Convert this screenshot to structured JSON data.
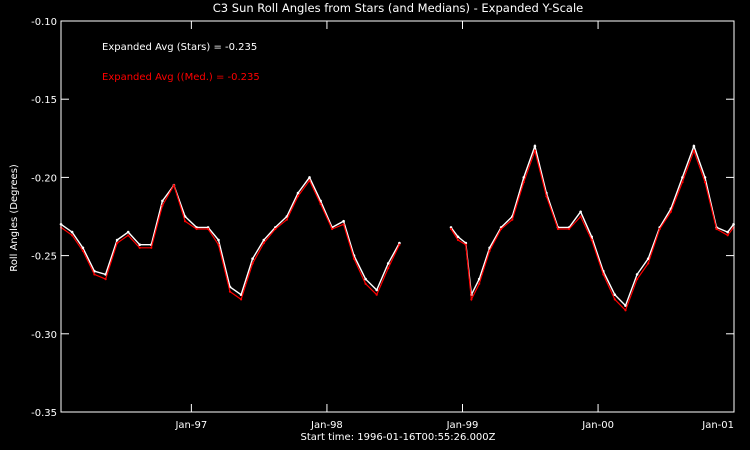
{
  "chart_data": {
    "type": "line",
    "title": "C3 Sun Roll Angles from Stars (and Medians) - Expanded Y-Scale",
    "xlabel": "Start time: 1996-01-16T00:55:26.000Z",
    "ylabel": "Roll Angles (Degrees)",
    "ylim": [
      -0.35,
      -0.1
    ],
    "xlim": [
      "1996-01-16",
      "2001-01-01"
    ],
    "y_ticks": [
      "-0.10",
      "-0.15",
      "-0.20",
      "-0.25",
      "-0.30",
      "-0.35"
    ],
    "y_tick_values": [
      -0.1,
      -0.15,
      -0.2,
      -0.25,
      -0.3,
      -0.35
    ],
    "x_ticks": [
      "Jan-97",
      "Jan-98",
      "Jan-99",
      "Jan-00",
      "Jan-01"
    ],
    "x_tick_dates": [
      "1997-01-01",
      "1998-01-01",
      "1999-01-01",
      "2000-01-01",
      "2001-01-01"
    ],
    "annotations": [
      {
        "text": "Expanded Avg (Stars) = -0.235",
        "color": "#ffffff"
      },
      {
        "text": "Expanded Avg ((Med.) = -0.235",
        "color": "#ff0000"
      }
    ],
    "series": [
      {
        "color": "#ffffff",
        "x": [
          "1996-01-16",
          "1996-02-15",
          "1996-03-15",
          "1996-04-15",
          "1996-05-15",
          "1996-06-15",
          "1996-07-15",
          "1996-08-15",
          "1996-09-15",
          "1996-10-15",
          "1996-11-15",
          "1996-12-15",
          "1997-01-15",
          "1997-02-15",
          "1997-03-15",
          "1997-04-15",
          "1997-05-15",
          "1997-06-15",
          "1997-07-15",
          "1997-08-15",
          "1997-09-15",
          "1997-10-15",
          "1997-11-15",
          "1997-12-15",
          "1998-01-15",
          "1998-02-15",
          "1998-03-15",
          "1998-04-15",
          "1998-05-15",
          "1998-06-15",
          "1998-07-15",
          "1998-12-01",
          "1998-12-20",
          "1999-01-10",
          "1999-01-25",
          "1999-02-15",
          "1999-03-15",
          "1999-04-15",
          "1999-05-15",
          "1999-06-15",
          "1999-07-15",
          "1999-08-15",
          "1999-09-15",
          "1999-10-15",
          "1999-11-15",
          "1999-12-15",
          "2000-01-15",
          "2000-02-15",
          "2000-03-15",
          "2000-04-15",
          "2000-05-15",
          "2000-06-15",
          "2000-07-15",
          "2000-08-15",
          "2000-09-15",
          "2000-10-15",
          "2000-11-15",
          "2000-12-15",
          "2000-12-31"
        ],
        "values": [
          -0.23,
          -0.235,
          -0.245,
          -0.26,
          -0.262,
          -0.24,
          -0.235,
          -0.243,
          -0.243,
          -0.215,
          -0.205,
          -0.225,
          -0.232,
          -0.232,
          -0.24,
          -0.27,
          -0.275,
          -0.252,
          -0.24,
          -0.232,
          -0.225,
          -0.21,
          -0.2,
          -0.215,
          -0.232,
          -0.228,
          -0.25,
          -0.265,
          -0.272,
          -0.255,
          -0.242,
          -0.232,
          -0.238,
          -0.242,
          -0.275,
          -0.265,
          -0.245,
          -0.232,
          -0.225,
          -0.2,
          -0.18,
          -0.21,
          -0.232,
          -0.232,
          -0.222,
          -0.238,
          -0.26,
          -0.275,
          -0.282,
          -0.262,
          -0.252,
          -0.232,
          -0.22,
          -0.2,
          -0.18,
          -0.2,
          -0.232,
          -0.235,
          -0.23
        ]
      },
      {
        "color": "#ff0000",
        "x": [
          "1996-01-16",
          "1996-02-15",
          "1996-03-15",
          "1996-04-15",
          "1996-05-15",
          "1996-06-15",
          "1996-07-15",
          "1996-08-15",
          "1996-09-15",
          "1996-10-15",
          "1996-11-15",
          "1996-12-15",
          "1997-01-15",
          "1997-02-15",
          "1997-03-15",
          "1997-04-15",
          "1997-05-15",
          "1997-06-15",
          "1997-07-15",
          "1997-08-15",
          "1997-09-15",
          "1997-10-15",
          "1997-11-15",
          "1997-12-15",
          "1998-01-15",
          "1998-02-15",
          "1998-03-15",
          "1998-04-15",
          "1998-05-15",
          "1998-06-15",
          "1998-07-15",
          "1998-12-01",
          "1998-12-20",
          "1999-01-10",
          "1999-01-25",
          "1999-02-15",
          "1999-03-15",
          "1999-04-15",
          "1999-05-15",
          "1999-06-15",
          "1999-07-15",
          "1999-08-15",
          "1999-09-15",
          "1999-10-15",
          "1999-11-15",
          "1999-12-15",
          "2000-01-15",
          "2000-02-15",
          "2000-03-15",
          "2000-04-15",
          "2000-05-15",
          "2000-06-15",
          "2000-07-15",
          "2000-08-15",
          "2000-09-15",
          "2000-10-15",
          "2000-11-15",
          "2000-12-15",
          "2000-12-31"
        ],
        "values": [
          -0.232,
          -0.237,
          -0.247,
          -0.262,
          -0.265,
          -0.242,
          -0.237,
          -0.245,
          -0.245,
          -0.218,
          -0.205,
          -0.228,
          -0.233,
          -0.233,
          -0.243,
          -0.273,
          -0.278,
          -0.255,
          -0.242,
          -0.233,
          -0.227,
          -0.212,
          -0.202,
          -0.217,
          -0.233,
          -0.23,
          -0.252,
          -0.268,
          -0.275,
          -0.258,
          -0.243,
          -0.233,
          -0.24,
          -0.243,
          -0.278,
          -0.268,
          -0.247,
          -0.233,
          -0.227,
          -0.203,
          -0.183,
          -0.212,
          -0.233,
          -0.233,
          -0.225,
          -0.24,
          -0.262,
          -0.278,
          -0.285,
          -0.265,
          -0.255,
          -0.233,
          -0.222,
          -0.203,
          -0.183,
          -0.203,
          -0.233,
          -0.237,
          -0.232
        ]
      }
    ]
  }
}
